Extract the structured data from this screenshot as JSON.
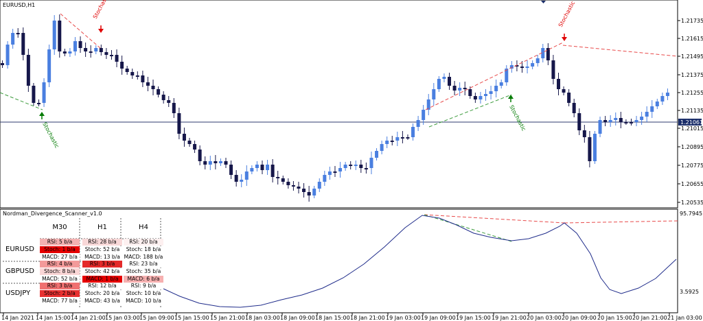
{
  "window": {
    "title": "EURUSD,H1"
  },
  "indicator": {
    "title": "Nordman_Divergence_Scanner_v1.0",
    "top_value": "95.7945",
    "bottom_value": "3.5925"
  },
  "price_axis": {
    "labels": [
      "1.21735",
      "1.21615",
      "1.21495",
      "1.21375",
      "1.21255",
      "1.21135",
      "1.21015",
      "1.20895",
      "1.20775",
      "1.20655",
      "1.20535"
    ],
    "current_price": "1.21061"
  },
  "time_axis": {
    "labels": [
      "14 Jan 2021",
      "14 Jan 15:00",
      "14 Jan 21:00",
      "15 Jan 03:00",
      "15 Jan 09:00",
      "15 Jan 15:00",
      "15 Jan 21:00",
      "18 Jan 03:00",
      "18 Jan 09:00",
      "18 Jan 15:00",
      "18 Jan 21:00",
      "19 Jan 03:00",
      "19 Jan 09:00",
      "19 Jan 15:00",
      "19 Jan 21:00",
      "20 Jan 03:00",
      "20 Jan 09:00",
      "20 Jan 15:00",
      "20 Jan 21:00",
      "21 Jan 03:00"
    ]
  },
  "signals": [
    {
      "label": "Stochastic",
      "direction": "sell",
      "color": "#e00000"
    },
    {
      "label": "Stochastic",
      "direction": "buy",
      "color": "#007a00"
    },
    {
      "label": "Stochastic",
      "direction": "sell",
      "color": "#e00000"
    },
    {
      "label": "Stochastic",
      "direction": "buy",
      "color": "#007a00"
    }
  ],
  "scanner": {
    "timeframes": [
      "M30",
      "H1",
      "H4"
    ],
    "pairs": [
      {
        "name": "EURUSD",
        "rows": [
          [
            "RSI: 5 b/a",
            "RSI: 28 b/a",
            "RSI: 20 b/a"
          ],
          [
            "Stoch: 1 b/a",
            "Stoch: 52 b/a",
            "Stoch: 18 b/a"
          ],
          [
            "MACD: 27 b/a",
            "MACD: 13 b/a",
            "MACD: 188 b/a"
          ]
        ]
      },
      {
        "name": "GBPUSD",
        "rows": [
          [
            "RSI: 4 b/a",
            "RSI: 3 b/a",
            "RSI: 23 b/a"
          ],
          [
            "Stoch: 8 b/a",
            "Stoch: 42 b/a",
            "Stoch: 35 b/a"
          ],
          [
            "MACD: 52 b/a",
            "MACD: 1 b/a",
            "MACD: 6 b/a"
          ]
        ]
      },
      {
        "name": "USDJPY",
        "rows": [
          [
            "RSI: 3 b/a",
            "RSI: 12 b/a",
            "RSI: 9 b/a"
          ],
          [
            "Stoch: 2 b/a",
            "Stoch: 20 b/a",
            "Stoch: 10 b/a"
          ],
          [
            "MACD: 77 b/a",
            "MACD: 43 b/a",
            "MACD: 10 b/a"
          ]
        ]
      }
    ]
  },
  "colors": {
    "bull": "#4a7fe0",
    "bear": "#16174a",
    "divergence_bear": "#e84a4a",
    "divergence_bull": "#3a9a3a",
    "indicator_line": "#1e2b8a"
  }
}
